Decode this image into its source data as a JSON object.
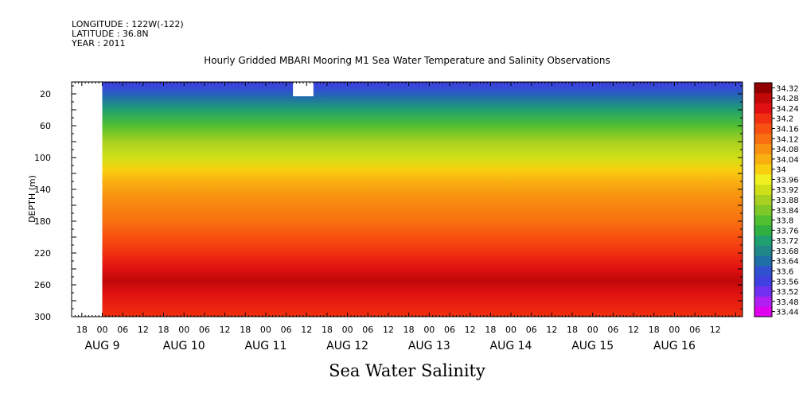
{
  "header": {
    "longitude": "LONGITUDE : 122W(-122)",
    "latitude": "LATITUDE : 36.8N",
    "year": "YEAR : 2011",
    "title": "Hourly Gridded MBARI Mooring M1 Sea Water Temperature and Salinity Observations"
  },
  "chart_data": {
    "type": "heatmap",
    "title": "Hourly Gridded MBARI Mooring M1 Sea Water Temperature and Salinity Observations",
    "variable_label": "Sea Water Salinity",
    "xlabel": "",
    "ylabel": "DEPTH (m)",
    "x_hour_ticks": [
      "18",
      "00",
      "06",
      "12",
      "18",
      "00",
      "06",
      "12",
      "18",
      "00",
      "06",
      "12",
      "18",
      "00",
      "06",
      "12",
      "18",
      "00",
      "06",
      "12",
      "18",
      "00",
      "06",
      "12",
      "18",
      "00",
      "06",
      "12",
      "18",
      "00",
      "06",
      "12"
    ],
    "x_day_labels": [
      "AUG 9",
      "AUG 10",
      "AUG 11",
      "AUG 12",
      "AUG 13",
      "AUG 14",
      "AUG 15",
      "AUG 16"
    ],
    "x_range_hours": [
      "2011-08-08 15:00",
      "2011-08-16 20:00"
    ],
    "y_ticks": [
      20,
      60,
      100,
      140,
      180,
      220,
      260,
      300
    ],
    "ylim": [
      300,
      5
    ],
    "color_levels": [
      "33.44",
      "33.48",
      "33.52",
      "33.56",
      "33.6",
      "33.64",
      "33.68",
      "33.72",
      "33.76",
      "33.8",
      "33.84",
      "33.88",
      "33.92",
      "33.96",
      "34",
      "34.04",
      "34.08",
      "34.12",
      "34.16",
      "34.2",
      "34.24",
      "34.28",
      "34.32"
    ],
    "colors": [
      "#e000f0",
      "#b020f0",
      "#7030f0",
      "#4040e0",
      "#3050d0",
      "#2070a8",
      "#208888",
      "#20a070",
      "#30b040",
      "#50c030",
      "#80c828",
      "#a8d020",
      "#d0e018",
      "#f0f020",
      "#f8d010",
      "#f8b010",
      "#f89010",
      "#f87010",
      "#f85010",
      "#f03010",
      "#e01010",
      "#c00808",
      "#900000"
    ],
    "depth_profile": [
      {
        "depth": 5,
        "salinity": 33.57
      },
      {
        "depth": 15,
        "salinity": 33.6
      },
      {
        "depth": 25,
        "salinity": 33.65
      },
      {
        "depth": 40,
        "salinity": 33.74
      },
      {
        "depth": 60,
        "salinity": 33.82
      },
      {
        "depth": 80,
        "salinity": 33.88
      },
      {
        "depth": 100,
        "salinity": 33.94
      },
      {
        "depth": 115,
        "salinity": 34.0
      },
      {
        "depth": 130,
        "salinity": 34.06
      },
      {
        "depth": 150,
        "salinity": 34.1
      },
      {
        "depth": 180,
        "salinity": 34.13
      },
      {
        "depth": 200,
        "salinity": 34.17
      },
      {
        "depth": 220,
        "salinity": 34.2
      },
      {
        "depth": 240,
        "salinity": 34.25
      },
      {
        "depth": 255,
        "salinity": 34.28
      },
      {
        "depth": 270,
        "salinity": 34.25
      },
      {
        "depth": 300,
        "salinity": 34.22
      }
    ],
    "missing_data": [
      {
        "x_start": "2011-08-08 15:00",
        "x_end": "2011-08-09 00:00",
        "depth_start": 5,
        "depth_end": 300
      },
      {
        "x_start": "2011-08-11 08:00",
        "x_end": "2011-08-11 14:00",
        "depth_start": 5,
        "depth_end": 23
      }
    ],
    "grid": false,
    "legend": "right"
  }
}
